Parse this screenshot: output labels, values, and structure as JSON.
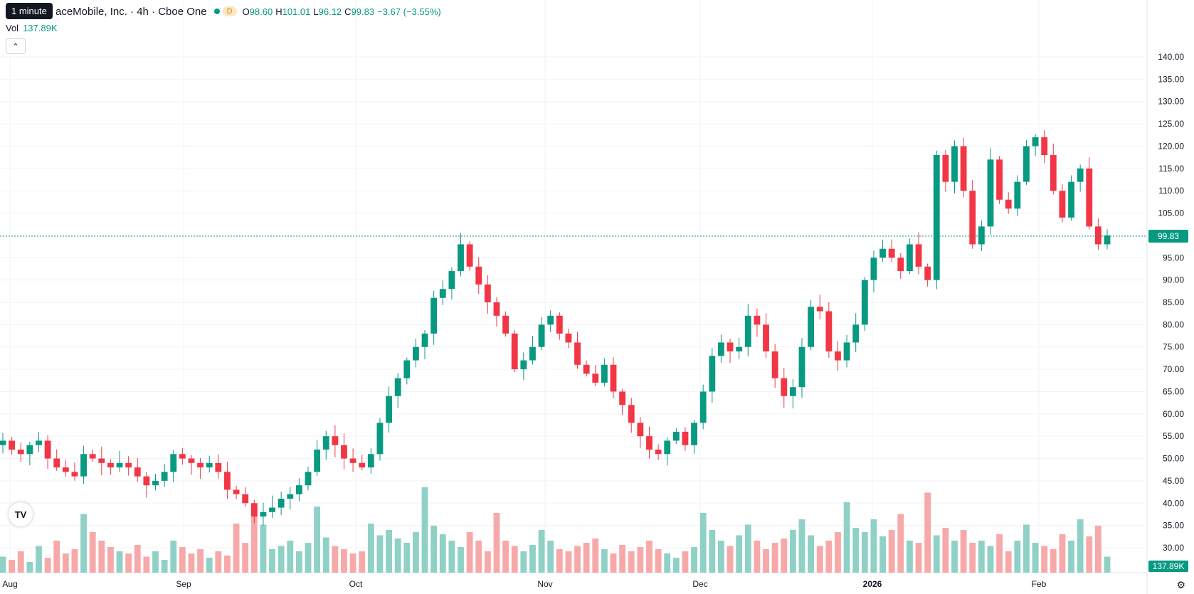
{
  "legend": {
    "symbol": "aceMobile, Inc. · 4h · Cboe One",
    "badge": "D",
    "o_label": "O",
    "o": "98.60",
    "h_label": "H",
    "h": "101.01",
    "l_label": "L",
    "l": "96.12",
    "c_label": "C",
    "c": "99.83",
    "change": "−3.67 (−3.55%)"
  },
  "tooltip": "1 minute",
  "volume": {
    "label": "Vol",
    "value": "137.89K"
  },
  "collapse_icon": "chevron-up-icon",
  "logo_icon": "tradingview-logo-icon",
  "settings_icon": "gear-icon",
  "colors": {
    "up": "#089981",
    "down": "#f23645",
    "up_vol": "#8fd1c6",
    "down_vol": "#f7a9a9"
  },
  "chart_data": {
    "type": "candlestick",
    "ylim": [
      27,
      141
    ],
    "y_ticks": [
      "140.00",
      "135.00",
      "130.00",
      "125.00",
      "120.00",
      "115.00",
      "110.00",
      "105.00",
      "100.00",
      "95.00",
      "90.00",
      "85.00",
      "80.00",
      "75.00",
      "70.00",
      "65.00",
      "60.00",
      "55.00",
      "50.00",
      "45.00",
      "40.00",
      "35.00",
      "30.00"
    ],
    "x_ticks": [
      "Aug",
      "Sep",
      "Oct",
      "Nov",
      "Dec",
      "2026",
      "Feb"
    ],
    "last_price": 99.83,
    "last_price_label": "99.83",
    "volume_label": "137.89K",
    "grid": true,
    "path": [
      54,
      52,
      51,
      53,
      54,
      50,
      48,
      47,
      46,
      51,
      50,
      49,
      48,
      49,
      48,
      46,
      44,
      45,
      47,
      51,
      50,
      49,
      48,
      49,
      47,
      43,
      42,
      40,
      37,
      38,
      39,
      41,
      42,
      44,
      47,
      52,
      55,
      53,
      50,
      49,
      48,
      51,
      58,
      64,
      68,
      72,
      75,
      78,
      86,
      88,
      92,
      98,
      93,
      89,
      85,
      82,
      78,
      70,
      72,
      75,
      80,
      82,
      78,
      76,
      71,
      69,
      67,
      71,
      65,
      62,
      58,
      55,
      52,
      51,
      54,
      56,
      53,
      58,
      65,
      73,
      76,
      74,
      75,
      82,
      80,
      74,
      68,
      64,
      66,
      75,
      84,
      83,
      74,
      72,
      76,
      80,
      90,
      95,
      97,
      95,
      92,
      98,
      93,
      90,
      118,
      112,
      120,
      110,
      98,
      102,
      117,
      108,
      106,
      112,
      120,
      122,
      118,
      110,
      104,
      112,
      115,
      102,
      98,
      100
    ],
    "volume_rel": [
      0.15,
      0.12,
      0.2,
      0.1,
      0.25,
      0.14,
      0.3,
      0.18,
      0.22,
      0.55,
      0.38,
      0.3,
      0.24,
      0.2,
      0.18,
      0.26,
      0.15,
      0.2,
      0.12,
      0.3,
      0.24,
      0.18,
      0.22,
      0.14,
      0.2,
      0.16,
      0.46,
      0.28,
      0.6,
      0.45,
      0.22,
      0.25,
      0.3,
      0.2,
      0.28,
      0.62,
      0.33,
      0.25,
      0.22,
      0.18,
      0.2,
      0.46,
      0.35,
      0.4,
      0.32,
      0.28,
      0.38,
      0.8,
      0.44,
      0.36,
      0.3,
      0.24,
      0.38,
      0.3,
      0.2,
      0.56,
      0.3,
      0.25,
      0.2,
      0.26,
      0.4,
      0.3,
      0.22,
      0.2,
      0.25,
      0.28,
      0.32,
      0.22,
      0.18,
      0.26,
      0.2,
      0.24,
      0.3,
      0.22,
      0.18,
      0.14,
      0.2,
      0.24,
      0.56,
      0.4,
      0.3,
      0.25,
      0.35,
      0.45,
      0.3,
      0.22,
      0.28,
      0.32,
      0.4,
      0.5,
      0.35,
      0.25,
      0.3,
      0.38,
      0.66,
      0.42,
      0.38,
      0.5,
      0.34,
      0.4,
      0.55,
      0.3,
      0.28,
      0.75,
      0.35,
      0.42,
      0.3,
      0.4,
      0.28,
      0.3,
      0.25,
      0.36,
      0.2,
      0.3,
      0.45,
      0.28,
      0.25,
      0.22,
      0.36,
      0.3,
      0.5,
      0.34,
      0.44,
      0.15
    ]
  }
}
